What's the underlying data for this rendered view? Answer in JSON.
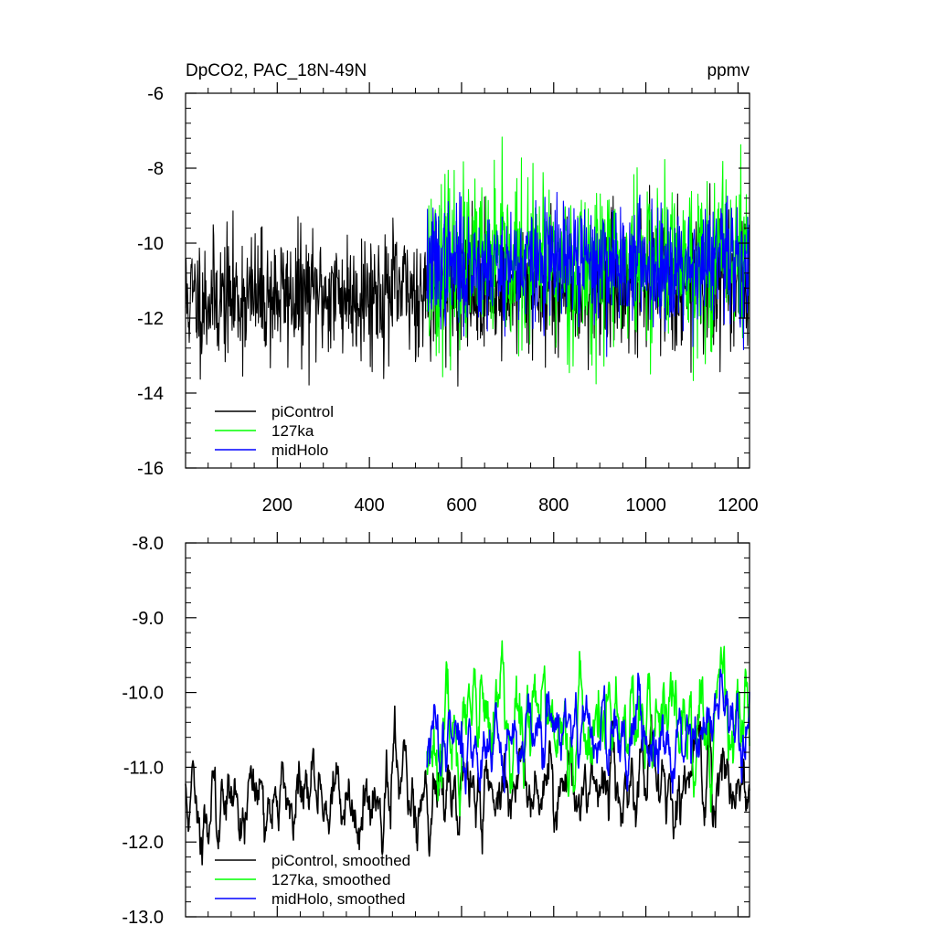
{
  "chart_data": [
    {
      "type": "line",
      "title": "DpCO2, PAC_18N-49N",
      "units_label": "ppmv",
      "xlabel": "",
      "ylabel": "",
      "xlim": [
        1,
        1225
      ],
      "ylim": [
        -16,
        -6
      ],
      "x_ticks": [
        200,
        400,
        600,
        800,
        1000,
        1200
      ],
      "x_tick_labels": [
        "200",
        "400",
        "600",
        "800",
        "1000",
        "1200"
      ],
      "y_ticks": [
        -16,
        -14,
        -12,
        -10,
        -8,
        -6
      ],
      "y_tick_labels": [
        "-16",
        "-14",
        "-12",
        "-10",
        "-8",
        "-6"
      ],
      "grid": false,
      "legend_position": "bottom-left",
      "series": [
        {
          "name": "piControl",
          "color": "#000000",
          "x_range": [
            1,
            1225
          ],
          "mean_start": -11.5,
          "mean_end": -11.0,
          "amplitude": 0.85,
          "seed": 11
        },
        {
          "name": "127ka",
          "color": "#00ff00",
          "x_range": [
            525,
            1225
          ],
          "mean_start": -10.6,
          "mean_end": -10.4,
          "amplitude": 1.1,
          "seed": 23
        },
        {
          "name": "midHolo",
          "color": "#0000ff",
          "x_range": [
            525,
            1225
          ],
          "mean_start": -10.6,
          "mean_end": -10.5,
          "amplitude": 0.8,
          "seed": 37
        }
      ]
    },
    {
      "type": "line",
      "title": "",
      "xlabel": "",
      "ylabel": "",
      "xlim": [
        1,
        1225
      ],
      "ylim": [
        -13.0,
        -8.0
      ],
      "x_ticks": [
        200,
        400,
        600,
        800,
        1000,
        1200
      ],
      "y_ticks": [
        -13.0,
        -12.0,
        -11.0,
        -10.0,
        -9.0,
        -8.0
      ],
      "y_tick_labels": [
        "-13.0",
        "-12.0",
        "-11.0",
        "-10.0",
        "-9.0",
        "-8.0"
      ],
      "grid": false,
      "legend_position": "bottom-left",
      "series": [
        {
          "name": "piControl, smoothed",
          "color": "#000000",
          "x_range": [
            1,
            1225
          ],
          "mean_start": -11.5,
          "mean_end": -11.1,
          "amplitude": 0.42,
          "seed": 11
        },
        {
          "name": "127ka, smoothed",
          "color": "#00ff00",
          "x_range": [
            525,
            1225
          ],
          "mean_start": -10.6,
          "mean_end": -10.3,
          "amplitude": 0.55,
          "seed": 23
        },
        {
          "name": "midHolo, smoothed",
          "color": "#0000ff",
          "x_range": [
            525,
            1225
          ],
          "mean_start": -10.7,
          "mean_end": -10.4,
          "amplitude": 0.4,
          "seed": 37
        }
      ]
    }
  ]
}
